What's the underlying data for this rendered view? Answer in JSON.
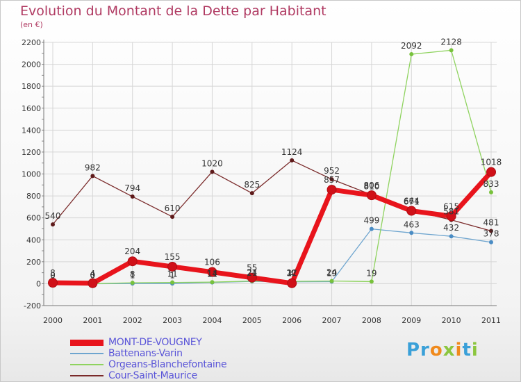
{
  "header": {
    "title": "Evolution du Montant de la Dette par Habitant",
    "subtitle": "(en €)"
  },
  "logo": {
    "text": "Proxiti"
  },
  "colors": {
    "title": "#b03a62",
    "legend_text": "#5a55d8",
    "grid": "#d6d6d6",
    "axis_text": "#333333"
  },
  "chart_data": {
    "type": "line",
    "title": "Evolution du Montant de la Dette par Habitant",
    "subtitle": "(en €)",
    "x": [
      "2000",
      "2001",
      "2002",
      "2003",
      "2004",
      "2005",
      "2006",
      "2007",
      "2008",
      "2009",
      "2010",
      "2011"
    ],
    "y_ticks": [
      "-200",
      "0",
      "200",
      "400",
      "600",
      "800",
      "1000",
      "1200",
      "1400",
      "1600",
      "1800",
      "2000",
      "2200"
    ],
    "ylim": [
      -200,
      2200
    ],
    "grid": true,
    "legend_position": "bottom-left",
    "series": [
      {
        "name": "MONT-DE-VOUGNEY",
        "color": "#e8141c",
        "marker": "#d01018",
        "width": 7,
        "point_radius": 6.5,
        "values": [
          8,
          4,
          204,
          155,
          106,
          55,
          4,
          857,
          806,
          664,
          615,
          1018
        ],
        "labels": [
          "8",
          "4",
          "204",
          "155",
          "106",
          "55",
          "4",
          "857",
          "806",
          "664",
          "615",
          "1018"
        ]
      },
      {
        "name": "Battenans-Varin",
        "color": "#6ea5cf",
        "marker": "#4a8cc4",
        "width": 1.3,
        "point_radius": 3,
        "values": [
          0,
          0,
          1,
          1,
          11,
          21,
          17,
          19,
          499,
          463,
          432,
          378
        ],
        "labels": [
          "0",
          "0",
          "1",
          "1",
          "11",
          "21",
          "17",
          "19",
          "499",
          "463",
          "432",
          "378"
        ]
      },
      {
        "name": "Orgeans-Blanchefontaine",
        "color": "#8fd35f",
        "marker": "#78c23c",
        "width": 1.3,
        "point_radius": 3,
        "values": [
          0,
          0,
          8,
          11,
          14,
          24,
          21,
          24,
          19,
          2092,
          2128,
          833
        ],
        "labels": [
          "0",
          "0",
          "8",
          "11",
          "14",
          "24",
          "21",
          "24",
          "19",
          "2092",
          "2128",
          "833"
        ]
      },
      {
        "name": "Cour-Saint-Maurice",
        "color": "#7a2a2a",
        "marker": "#5e1a1a",
        "width": 1.3,
        "point_radius": 3,
        "values": [
          540,
          982,
          794,
          610,
          1020,
          825,
          1124,
          952,
          810,
          671,
          581,
          481
        ],
        "labels": [
          "540",
          "982",
          "794",
          "610",
          "1020",
          "825",
          "1124",
          "952",
          "810",
          "671",
          "581",
          "481"
        ]
      }
    ]
  }
}
